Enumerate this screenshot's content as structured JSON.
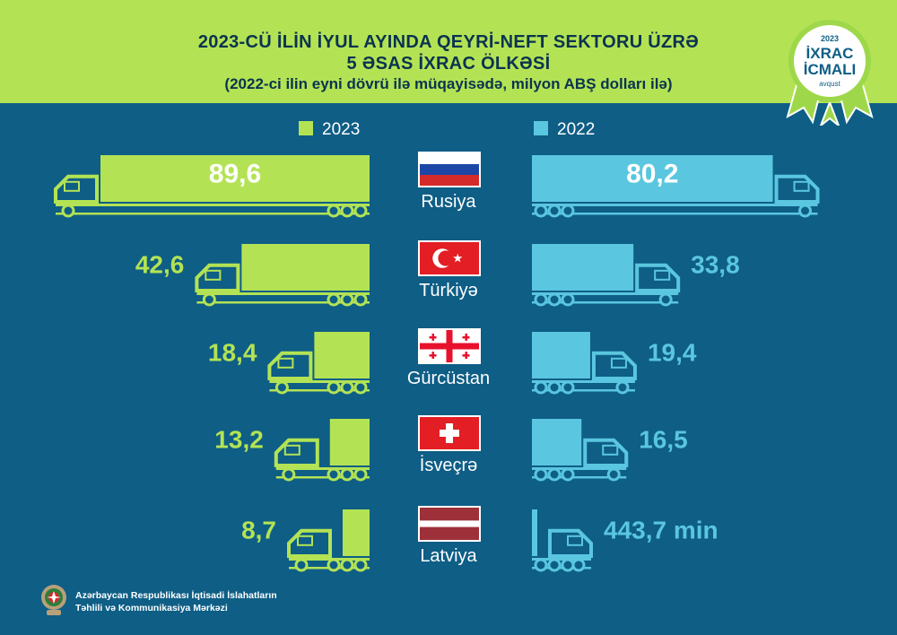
{
  "header": {
    "title_line1": "2023-CÜ İLİN İYUL AYINDA QEYRİ-NEFT SEKTORU ÜZRƏ",
    "title_line2": "5 ƏSAS İXRAC ÖLKƏSİ",
    "subtitle": "(2022-ci ilin eyni dövrü ilə müqayisədə, milyon ABŞ dolları ilə)"
  },
  "badge": {
    "year": "2023",
    "line1": "İXRAC",
    "line2": "İCMALI",
    "month": "avqust"
  },
  "footer": {
    "line1": "Azərbaycan Respublikası İqtisadi İslahatların",
    "line2": "Təhlili və Kommunikasiya Mərkəzi"
  },
  "colors": {
    "background": "#0e5e86",
    "series_2023": "#b3e354",
    "series_2022": "#5ac6df",
    "header": "#b3e354"
  },
  "chart_data": {
    "type": "bar",
    "title": "2023-CÜ İLİN İYUL AYINDA QEYRİ-NEFT SEKTORU ÜZRƏ 5 ƏSAS İXRAC ÖLKƏSİ",
    "subtitle": "(2022-ci ilin eyni dövrü ilə müqayisədə, milyon ABŞ dolları ilə)",
    "categories": [
      "Rusiya",
      "Türkiyə",
      "Gürcüstan",
      "İsveçrə",
      "Latviya"
    ],
    "series": [
      {
        "name": "2023",
        "values": [
          89.6,
          42.6,
          18.4,
          13.2,
          8.7
        ],
        "labels": [
          "89,6",
          "42,6",
          "18,4",
          "13,2",
          "8,7"
        ]
      },
      {
        "name": "2022",
        "values": [
          80.2,
          33.8,
          19.4,
          16.5,
          0.4437
        ],
        "labels": [
          "80,2",
          "33,8",
          "19,4",
          "16,5",
          "443,7 min"
        ]
      }
    ],
    "flags": [
      "russia",
      "turkey",
      "georgia",
      "switzerland",
      "latvia"
    ],
    "legend_position": "top"
  }
}
